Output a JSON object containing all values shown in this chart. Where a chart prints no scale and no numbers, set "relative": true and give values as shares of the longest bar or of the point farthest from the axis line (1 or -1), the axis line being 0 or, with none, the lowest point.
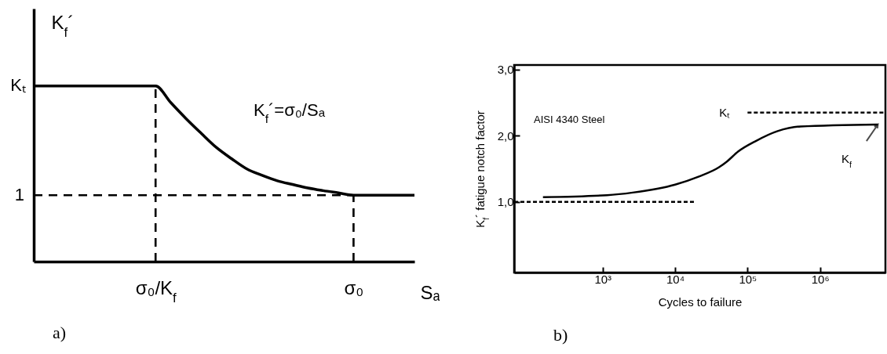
{
  "chart_data": [
    {
      "type": "line",
      "relative": true,
      "ylabel": "K$_{f}$´",
      "xlabel": "Sₐ",
      "categories": [
        null,
        null,
        null,
        null,
        null,
        null,
        null,
        null,
        "σ₀/K$_{f}$",
        null,
        null,
        null,
        null,
        null,
        null,
        null,
        null,
        null,
        null,
        null,
        null,
        "σ₀",
        null,
        null,
        null,
        null
      ],
      "series": [
        {
          "color": "#000000",
          "line_style": "solid",
          "values": [
            1,
            1,
            1,
            1,
            1,
            1,
            1,
            1,
            1,
            0.905,
            0.814,
            0.73,
            0.649,
            0.585,
            0.527,
            0.491,
            0.46,
            0.439,
            0.419,
            0.404,
            0.391,
            0.378,
            0.378,
            0.378,
            0.378,
            0.378
          ]
        }
      ],
      "ref_lines": [
        {
          "axis": "y",
          "value": 0.378,
          "line_style": "dashed"
        },
        {
          "axis": "x",
          "value": "σ₀/K$_{f}$",
          "line_style": "dashed"
        },
        {
          "axis": "x",
          "value": "σ₀",
          "line_style": "dashed"
        }
      ],
      "annotations": [
        "Kₜ",
        "1",
        "K$_{f}$´=σ₀/Sₐ",
        "a)"
      ]
    },
    {
      "type": "line",
      "log": "x",
      "ylabel": "K$_{f}$´ fatigue notch factor",
      "xlabel": "Cycles to failure",
      "xlim": [
        60,
        8000000
      ],
      "ylim": [
        -0.07,
        3.07
      ],
      "xticks": [
        {
          "value": 1000,
          "label": "10³"
        },
        {
          "value": 10000,
          "label": "10⁴"
        },
        {
          "value": 100000,
          "label": "10⁵"
        },
        {
          "value": 1000000,
          "label": "10⁶"
        }
      ],
      "yticks": [
        {
          "value": 1,
          "label": "1,0"
        },
        {
          "value": 2,
          "label": "2,0"
        },
        {
          "value": 3,
          "label": "3,0"
        }
      ],
      "series": [
        {
          "name": "K$_{f}$",
          "color": "#000000",
          "line_style": "solid",
          "x": [
            150,
            1150,
            2600,
            10000,
            21000,
            40000,
            52000,
            74000,
            130000,
            260000,
            540000,
            6300000
          ],
          "values": [
            1.07,
            1.1,
            1.14,
            1.26,
            1.38,
            1.52,
            1.61,
            1.76,
            1.92,
            2.07,
            2.14,
            2.17
          ]
        },
        {
          "color": "#000000",
          "line_style": "dashed",
          "x": [
            60,
            19000
          ],
          "values": [
            1,
            1
          ]
        },
        {
          "name": "Kₜ",
          "color": "#000000",
          "line_style": "dashed",
          "x": [
            100000,
            8000000
          ],
          "values": [
            2.35,
            2.35
          ]
        }
      ],
      "annotations": [
        "AISI 4340 Steel",
        "b)"
      ]
    }
  ]
}
